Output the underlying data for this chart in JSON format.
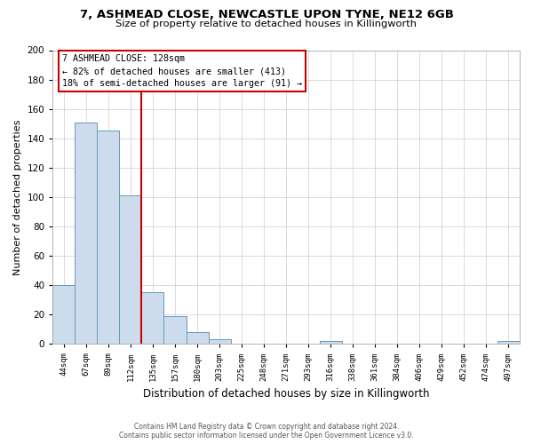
{
  "title1": "7, ASHMEAD CLOSE, NEWCASTLE UPON TYNE, NE12 6GB",
  "title2": "Size of property relative to detached houses in Killingworth",
  "xlabel": "Distribution of detached houses by size in Killingworth",
  "ylabel": "Number of detached properties",
  "bar_labels": [
    "44sqm",
    "67sqm",
    "89sqm",
    "112sqm",
    "135sqm",
    "157sqm",
    "180sqm",
    "203sqm",
    "225sqm",
    "248sqm",
    "271sqm",
    "293sqm",
    "316sqm",
    "338sqm",
    "361sqm",
    "384sqm",
    "406sqm",
    "429sqm",
    "452sqm",
    "474sqm",
    "497sqm"
  ],
  "bar_values": [
    40,
    151,
    145,
    101,
    35,
    19,
    8,
    3,
    0,
    0,
    0,
    0,
    2,
    0,
    0,
    0,
    0,
    0,
    0,
    0,
    2
  ],
  "bar_color": "#ccdcec",
  "bar_edge_color": "#6699bb",
  "vline_color": "#cc0000",
  "annotation_line1": "7 ASHMEAD CLOSE: 128sqm",
  "annotation_line2": "← 82% of detached houses are smaller (413)",
  "annotation_line3": "18% of semi-detached houses are larger (91) →",
  "annotation_box_facecolor": "#ffffff",
  "annotation_box_edgecolor": "#cc0000",
  "ylim": [
    0,
    200
  ],
  "yticks": [
    0,
    20,
    40,
    60,
    80,
    100,
    120,
    140,
    160,
    180,
    200
  ],
  "footer1": "Contains HM Land Registry data © Crown copyright and database right 2024.",
  "footer2": "Contains public sector information licensed under the Open Government Licence v3.0.",
  "bg_color": "#ffffff",
  "grid_color": "#cccccc"
}
